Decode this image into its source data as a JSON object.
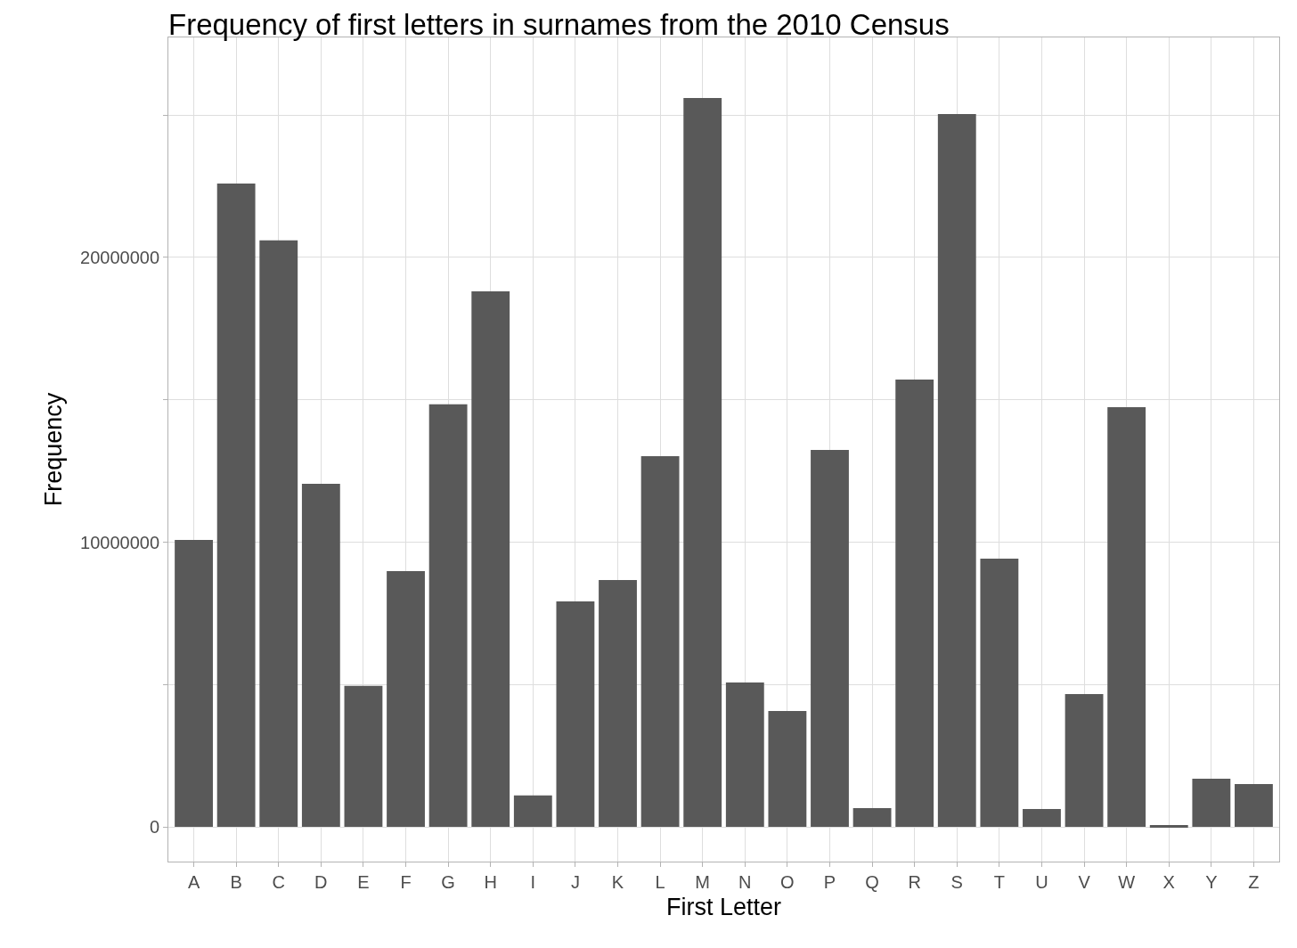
{
  "chart_data": {
    "type": "bar",
    "title": "Frequency of first letters in surnames from the 2010 Census",
    "xlabel": "First Letter",
    "ylabel": "Frequency",
    "categories": [
      "A",
      "B",
      "C",
      "D",
      "E",
      "F",
      "G",
      "H",
      "I",
      "J",
      "K",
      "L",
      "M",
      "N",
      "O",
      "P",
      "Q",
      "R",
      "S",
      "T",
      "U",
      "V",
      "W",
      "X",
      "Y",
      "Z"
    ],
    "values": [
      10080000,
      22600000,
      20600000,
      12050000,
      4950000,
      8980000,
      14840000,
      18810000,
      1100000,
      7920000,
      8670000,
      13020000,
      25600000,
      5070000,
      4070000,
      13240000,
      660000,
      15710000,
      25040000,
      9420000,
      630000,
      4660000,
      14740000,
      60000,
      1690000,
      1500000
    ],
    "color": "#595959",
    "ylim": [
      -1220000,
      27730000
    ],
    "yticks": [
      0,
      {
        "value": 5000000,
        "label": null
      },
      10000000,
      {
        "value": 15000000,
        "label": null
      },
      20000000,
      {
        "value": 25000000,
        "label": null
      }
    ],
    "grid": true,
    "legend": false
  }
}
